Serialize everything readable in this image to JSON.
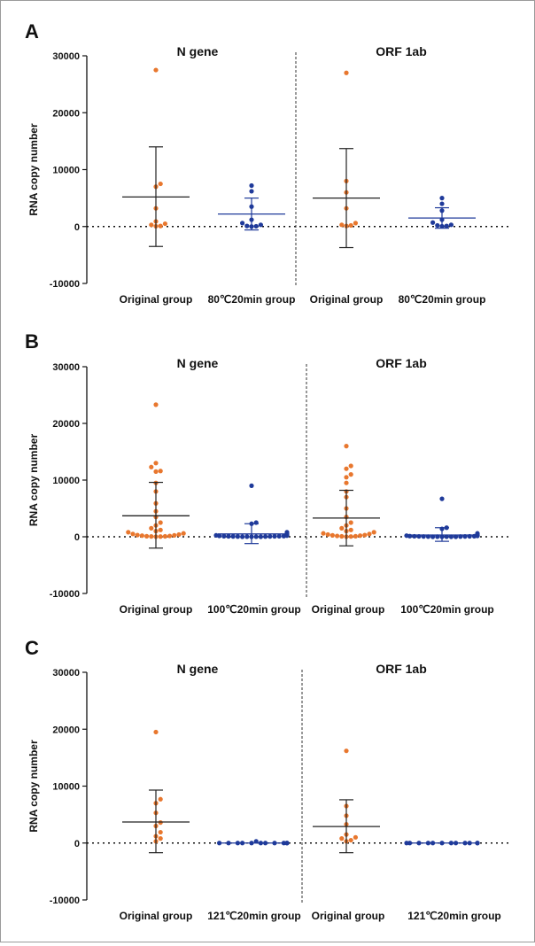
{
  "chart_data": [
    {
      "panel": "A",
      "type": "scatter",
      "ylabel": "RNA copy number",
      "ylim": [
        -10000,
        30000
      ],
      "yticks": [
        "30000",
        "20000",
        "10000",
        "0",
        "-10000"
      ],
      "sections": [
        {
          "title": "N gene",
          "groups": [
            {
              "name": "Original group",
              "color": "#e8772e",
              "mean": 5200,
              "sd_upper": 14000,
              "sd_lower": -3500,
              "values": [
                27500,
                7500,
                7000,
                3200,
                900,
                500,
                300,
                100,
                50
              ]
            },
            {
              "name": "80℃20min group",
              "color": "#1f3a9a",
              "mean": 2200,
              "sd_upper": 5000,
              "sd_lower": -600,
              "values": [
                7200,
                6200,
                3500,
                1200,
                600,
                300,
                100,
                50,
                0
              ]
            }
          ]
        },
        {
          "title": "ORF 1ab",
          "groups": [
            {
              "name": "Original group",
              "color": "#e8772e",
              "mean": 5000,
              "sd_upper": 13700,
              "sd_lower": -3700,
              "values": [
                27000,
                8000,
                6000,
                3200,
                600,
                300,
                200,
                100
              ]
            },
            {
              "name": "80℃20min group",
              "color": "#1f3a9a",
              "mean": 1500,
              "sd_upper": 3300,
              "sd_lower": -300,
              "values": [
                5000,
                4000,
                2800,
                1200,
                700,
                300,
                200,
                100,
                50
              ]
            }
          ]
        }
      ]
    },
    {
      "panel": "B",
      "type": "scatter",
      "ylabel": "RNA copy number",
      "ylim": [
        -10000,
        30000
      ],
      "yticks": [
        "30000",
        "20000",
        "10000",
        "0",
        "-10000"
      ],
      "sections": [
        {
          "title": "N gene",
          "groups": [
            {
              "name": "Original group",
              "color": "#e8772e",
              "mean": 3700,
              "sd_upper": 9600,
              "sd_lower": -2000,
              "values": [
                23300,
                13000,
                12300,
                11600,
                11500,
                9500,
                8000,
                5900,
                4500,
                3500,
                2500,
                2000,
                1500,
                1200,
                1000,
                800,
                600,
                500,
                400,
                300,
                250,
                200,
                150,
                100,
                80,
                60,
                40,
                20
              ]
            },
            {
              "name": "100℃20min group",
              "color": "#1f3a9a",
              "mean": 500,
              "sd_upper": 2300,
              "sd_lower": -1200,
              "values": [
                9000,
                2500,
                2300,
                800,
                600,
                400,
                300,
                250,
                200,
                150,
                120,
                100,
                90,
                80,
                70,
                60,
                50,
                40,
                30,
                20,
                10,
                0,
                0,
                0
              ]
            }
          ]
        },
        {
          "title": "ORF 1ab",
          "groups": [
            {
              "name": "Original group",
              "color": "#e8772e",
              "mean": 3300,
              "sd_upper": 8200,
              "sd_lower": -1600,
              "values": [
                16000,
                12500,
                12000,
                11000,
                10500,
                9500,
                8000,
                7000,
                5000,
                3500,
                2500,
                2000,
                1500,
                1200,
                1000,
                800,
                600,
                500,
                400,
                300,
                250,
                200,
                150,
                100,
                80,
                50,
                20
              ]
            },
            {
              "name": "100℃20min group",
              "color": "#1f3a9a",
              "mean": 300,
              "sd_upper": 1600,
              "sd_lower": -800,
              "values": [
                6700,
                1600,
                1400,
                600,
                400,
                300,
                250,
                200,
                150,
                120,
                100,
                90,
                80,
                70,
                60,
                50,
                40,
                30,
                20,
                10,
                0,
                0,
                0,
                0
              ]
            }
          ]
        }
      ]
    },
    {
      "panel": "C",
      "type": "scatter",
      "ylabel": "RNA copy number",
      "ylim": [
        -10000,
        30000
      ],
      "yticks": [
        "30000",
        "20000",
        "10000",
        "0",
        "-10000"
      ],
      "sections": [
        {
          "title": "N gene",
          "groups": [
            {
              "name": "Original group",
              "color": "#e8772e",
              "mean": 3700,
              "sd_upper": 9300,
              "sd_lower": -1700,
              "values": [
                19500,
                7700,
                7000,
                5300,
                3600,
                3000,
                1900,
                1200,
                800,
                300
              ]
            },
            {
              "name": "121℃20min group",
              "color": "#1f3a9a",
              "mean": 0,
              "sd_upper": 0,
              "sd_lower": 0,
              "values": [
                300,
                0,
                0,
                0,
                0,
                0,
                0,
                0,
                0,
                0,
                0,
                0
              ]
            }
          ]
        },
        {
          "title": "ORF 1ab",
          "groups": [
            {
              "name": "Original group",
              "color": "#e8772e",
              "mean": 2900,
              "sd_upper": 7600,
              "sd_lower": -1700,
              "values": [
                16200,
                6500,
                4800,
                3300,
                1500,
                1000,
                800,
                500,
                300
              ]
            },
            {
              "name": "121℃20min group",
              "color": "#1f3a9a",
              "mean": 0,
              "sd_upper": 0,
              "sd_lower": 0,
              "values": [
                0,
                0,
                0,
                0,
                0,
                0,
                0,
                0,
                0,
                0,
                0,
                0
              ]
            }
          ]
        }
      ]
    }
  ]
}
